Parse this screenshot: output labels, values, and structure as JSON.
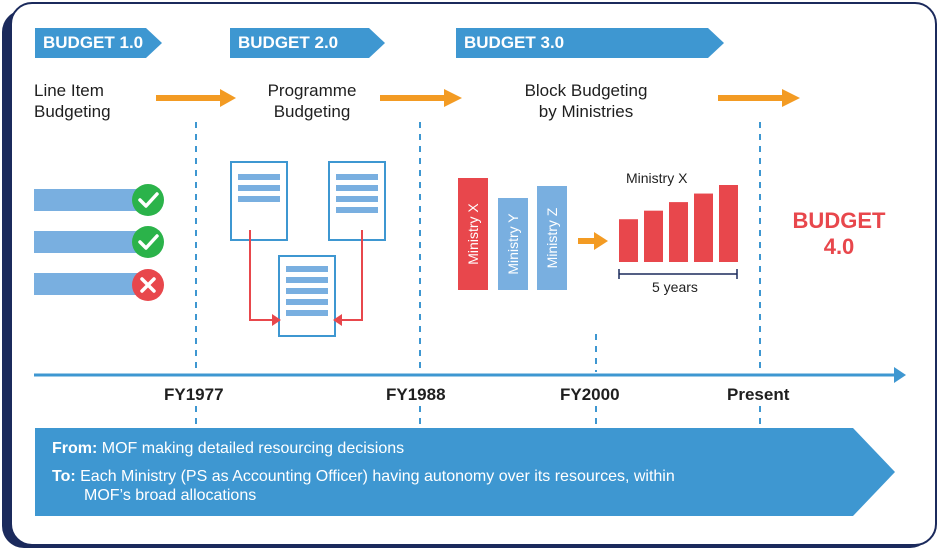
{
  "phases": [
    {
      "tag": "BUDGET 1.0",
      "title": "Line Item\nBudgeting",
      "line1": "Line Item",
      "line2": "Budgeting"
    },
    {
      "tag": "BUDGET 2.0",
      "line1": "Programme",
      "line2": "Budgeting"
    },
    {
      "tag": "BUDGET 3.0",
      "line1": "Block Budgeting",
      "line2": "by Ministries"
    }
  ],
  "budget4": {
    "line1": "BUDGET",
    "line2": "4.0"
  },
  "timeline": [
    "FY1977",
    "FY1988",
    "FY2000",
    "Present"
  ],
  "ministries": [
    "Ministry X",
    "Ministry Y",
    "Ministry Z"
  ],
  "ministry_chart": {
    "title": "Ministry X",
    "span_label": "5 years",
    "bar_values": [
      1,
      1.2,
      1.4,
      1.6,
      1.8
    ]
  },
  "banner": {
    "from_label": "From:",
    "from_text": " MOF making detailed resourcing decisions",
    "to_label": "To:",
    "to_text_line1": " Each Ministry (PS as Accounting Officer) having autonomy over its resources, within",
    "to_text_line2": "MOF’s broad allocations"
  },
  "line_items": [
    {
      "status": "check",
      "color": "#2bb34a"
    },
    {
      "status": "check",
      "color": "#2bb34a"
    },
    {
      "status": "cross",
      "color": "#e8474c"
    }
  ],
  "colors": {
    "blue": "#3e97d1",
    "light_blue": "#79afe0",
    "red": "#e8474c",
    "orange": "#f39b23",
    "navy": "#1b2a5c",
    "green": "#2bb34a"
  }
}
